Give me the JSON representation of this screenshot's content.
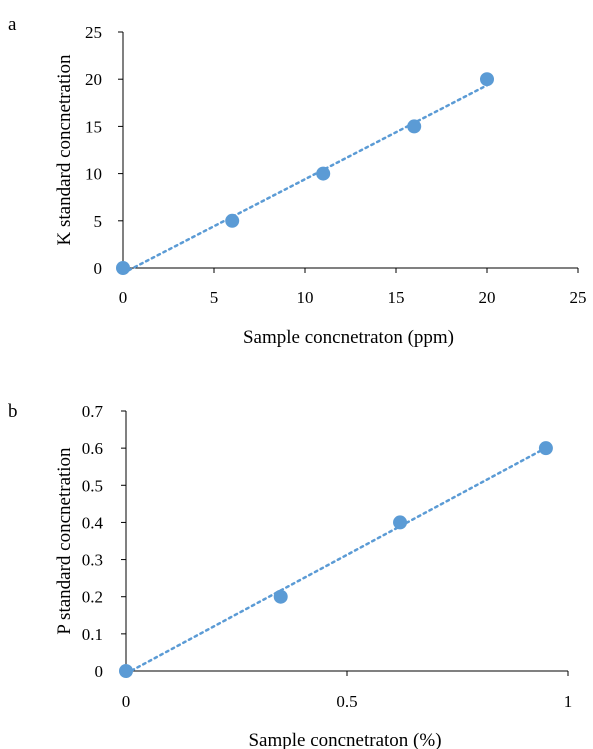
{
  "colors": {
    "marker": "#5b9bd5",
    "trendline": "#5b9bd5"
  },
  "chart_data": [
    {
      "panel_label": "a",
      "type": "scatter",
      "title": "",
      "xlabel": "Sample concnetraton (ppm)",
      "ylabel": "K standard concnetration",
      "xlim": [
        0,
        25
      ],
      "ylim": [
        0,
        25
      ],
      "xticks": [
        0,
        5,
        10,
        15,
        20,
        25
      ],
      "yticks": [
        0,
        5,
        10,
        15,
        20,
        25
      ],
      "xtick_labels": [
        "0",
        "5",
        "10",
        "15",
        "20",
        "25"
      ],
      "ytick_labels": [
        "0",
        "5",
        "10",
        "15",
        "20",
        "25"
      ],
      "grid": false,
      "trendline": "linear-dotted",
      "points": [
        {
          "x": 0,
          "y": 0
        },
        {
          "x": 6,
          "y": 5
        },
        {
          "x": 11,
          "y": 10
        },
        {
          "x": 16,
          "y": 15
        },
        {
          "x": 20,
          "y": 20
        }
      ]
    },
    {
      "panel_label": "b",
      "type": "scatter",
      "title": "",
      "xlabel": "Sample concnetraton (%)",
      "ylabel": "P standard concnetration",
      "xlim": [
        0,
        1
      ],
      "ylim": [
        0,
        0.7
      ],
      "xticks": [
        0,
        0.5,
        1
      ],
      "yticks": [
        0,
        0.1,
        0.2,
        0.3,
        0.4,
        0.5,
        0.6,
        0.7
      ],
      "xtick_labels": [
        "0",
        "0.5",
        "1"
      ],
      "ytick_labels": [
        "0",
        "0.1",
        "0.2",
        "0.3",
        "0.4",
        "0.5",
        "0.6",
        "0.7"
      ],
      "grid": false,
      "trendline": "linear-dotted",
      "points": [
        {
          "x": 0,
          "y": 0
        },
        {
          "x": 0.35,
          "y": 0.2
        },
        {
          "x": 0.62,
          "y": 0.4
        },
        {
          "x": 0.95,
          "y": 0.6
        }
      ]
    }
  ]
}
